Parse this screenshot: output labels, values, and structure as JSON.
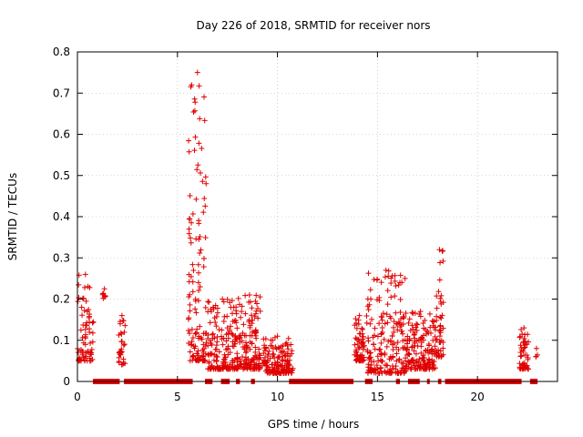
{
  "chart_data": {
    "type": "scatter",
    "title": "Day 226 of 2018, SRMTID for receiver nors",
    "xlabel": "GPS time / hours",
    "ylabel": "SRMTID / TECUs",
    "xlim": [
      0,
      24
    ],
    "ylim": [
      0,
      0.8
    ],
    "x_ticks": [
      0,
      5,
      10,
      15,
      20
    ],
    "x_tick_labels": [
      "0",
      "5",
      "10",
      "15",
      "20"
    ],
    "y_ticks": [
      0,
      0.1,
      0.2,
      0.3,
      0.4,
      0.5,
      0.6,
      0.7,
      0.8
    ],
    "y_tick_labels": [
      "0",
      "0.1",
      "0.2",
      "0.3",
      "0.4",
      "0.5",
      "0.6",
      "0.7",
      "0.8"
    ],
    "grid": true,
    "marker": "+",
    "color": "#e00000",
    "clusters": [
      {
        "x_range": [
          0.0,
          0.8
        ],
        "y_base": 0.05,
        "y_peak": 0.26,
        "count": 70
      },
      {
        "x_range": [
          1.25,
          1.45
        ],
        "y_base": 0.2,
        "y_peak": 0.225,
        "count": 8
      },
      {
        "x_range": [
          2.05,
          2.4
        ],
        "y_base": 0.04,
        "y_peak": 0.16,
        "count": 30
      },
      {
        "x_range": [
          5.55,
          6.45
        ],
        "y_base": 0.05,
        "y_peak": 0.75,
        "count": 130
      },
      {
        "x_range": [
          6.5,
          8.0
        ],
        "y_base": 0.03,
        "y_peak": 0.2,
        "count": 170
      },
      {
        "x_range": [
          8.0,
          9.2
        ],
        "y_base": 0.03,
        "y_peak": 0.21,
        "count": 130
      },
      {
        "x_range": [
          9.2,
          10.8
        ],
        "y_base": 0.02,
        "y_peak": 0.11,
        "count": 150
      },
      {
        "x_range": [
          13.85,
          14.35
        ],
        "y_base": 0.05,
        "y_peak": 0.16,
        "count": 60
      },
      {
        "x_range": [
          14.45,
          16.4
        ],
        "y_base": 0.02,
        "y_peak": 0.27,
        "count": 200
      },
      {
        "x_range": [
          16.4,
          17.9
        ],
        "y_base": 0.03,
        "y_peak": 0.17,
        "count": 160
      },
      {
        "x_range": [
          17.9,
          18.3
        ],
        "y_base": 0.06,
        "y_peak": 0.32,
        "count": 50
      },
      {
        "x_range": [
          22.1,
          22.55
        ],
        "y_base": 0.03,
        "y_peak": 0.13,
        "count": 50
      },
      {
        "x_range": [
          22.9,
          23.0
        ],
        "y_base": 0.06,
        "y_peak": 0.08,
        "count": 3
      }
    ],
    "zero_segments": [
      [
        0.8,
        2.1
      ],
      [
        2.35,
        5.75
      ],
      [
        6.4,
        6.75
      ],
      [
        7.2,
        7.6
      ],
      [
        7.95,
        8.1
      ],
      [
        8.7,
        8.85
      ],
      [
        10.6,
        13.8
      ],
      [
        14.4,
        14.75
      ],
      [
        15.95,
        16.1
      ],
      [
        16.55,
        17.1
      ],
      [
        17.5,
        17.6
      ],
      [
        18.05,
        18.2
      ],
      [
        18.4,
        22.2
      ],
      [
        22.65,
        23.0
      ]
    ]
  }
}
